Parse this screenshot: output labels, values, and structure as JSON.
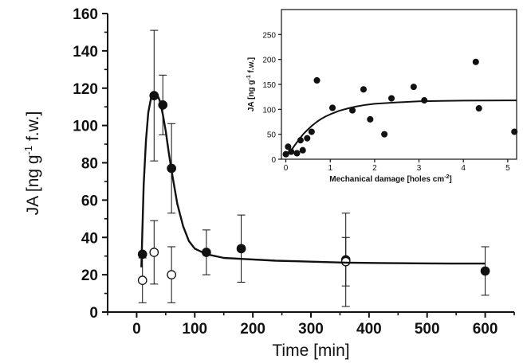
{
  "chart_data": [
    {
      "type": "scatter",
      "title": "",
      "xlabel": "Time [min]",
      "ylabel": "JA [ng g⁻¹ f.w.]",
      "xlim": [
        -50,
        650
      ],
      "ylim": [
        0,
        160
      ],
      "xticks": [
        "0",
        "100",
        "200",
        "300",
        "400",
        "500",
        "600"
      ],
      "yticks": [
        "0",
        "20",
        "40",
        "60",
        "80",
        "100",
        "120",
        "140",
        "160"
      ],
      "grid": false,
      "series": [
        {
          "marker": "filled-circle",
          "x": [
            10,
            30,
            45,
            60,
            120,
            180,
            360,
            600
          ],
          "y": [
            31,
            116,
            111,
            77,
            32,
            34,
            28,
            22
          ],
          "error": [
            null,
            35,
            16,
            24,
            12,
            18,
            25,
            13
          ]
        },
        {
          "marker": "open-circle",
          "x": [
            10,
            30,
            60,
            360
          ],
          "y": [
            17,
            32,
            20,
            27
          ],
          "error": [
            12,
            17,
            15,
            13
          ]
        },
        {
          "style": "fitted-line",
          "x": [
            8,
            12,
            16,
            20,
            25,
            30,
            35,
            40,
            45,
            50,
            55,
            60,
            70,
            80,
            90,
            100,
            120,
            150,
            180,
            240,
            300,
            360,
            420,
            480,
            540,
            600
          ],
          "y": [
            24,
            68,
            92,
            107,
            115,
            117.5,
            117,
            113,
            106,
            97,
            86,
            76,
            58,
            46,
            38,
            34,
            31,
            29,
            28.5,
            27.5,
            27,
            26.5,
            26.3,
            26.1,
            26,
            26
          ]
        }
      ]
    },
    {
      "type": "scatter",
      "title": "",
      "xlabel": "Mechanical damage [holes cm⁻²]",
      "ylabel": "JA [ng g⁻¹ f.w.]",
      "xlim": [
        -0.1,
        5.2
      ],
      "ylim": [
        0,
        300
      ],
      "xticks": [
        "0",
        "1",
        "2",
        "3",
        "4",
        "5"
      ],
      "yticks": [
        "0",
        "50",
        "100",
        "150",
        "200",
        "250"
      ],
      "grid": false,
      "series": [
        {
          "marker": "filled-circle",
          "x": [
            0.0,
            0.05,
            0.12,
            0.25,
            0.33,
            0.38,
            0.48,
            0.58,
            0.7,
            1.05,
            1.5,
            1.75,
            1.9,
            2.22,
            2.38,
            2.88,
            3.12,
            4.28,
            4.35,
            5.15
          ],
          "y": [
            10,
            25,
            15,
            12,
            38,
            18,
            42,
            55,
            158,
            103,
            98,
            140,
            80,
            50,
            122,
            145,
            118,
            195,
            102,
            55
          ]
        },
        {
          "style": "fitted-line",
          "x": [
            0,
            0.1,
            0.2,
            0.3,
            0.4,
            0.5,
            0.6,
            0.7,
            0.8,
            0.9,
            1.0,
            1.2,
            1.4,
            1.6,
            1.8,
            2.0,
            2.5,
            3.0,
            3.5,
            4.0,
            4.5,
            5.2
          ],
          "y": [
            5,
            15,
            28,
            40,
            51,
            60,
            68,
            75,
            81,
            86,
            90,
            97,
            102,
            106,
            109,
            111,
            114,
            116,
            117,
            117.5,
            117.8,
            118
          ]
        }
      ]
    }
  ],
  "colors": {
    "ink": "#111111",
    "background": "#ffffff"
  }
}
